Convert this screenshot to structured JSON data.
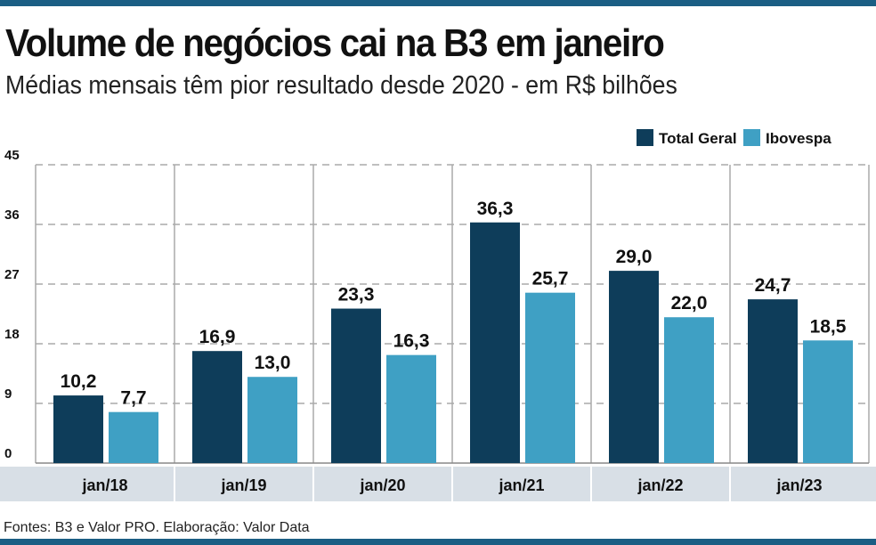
{
  "chart_data": {
    "type": "bar",
    "title": "Volume de negócios cai na B3 em janeiro",
    "subtitle": "Médias mensais têm pior resultado desde 2020 - em R$ bilhões",
    "categories": [
      "jan/18",
      "jan/19",
      "jan/20",
      "jan/21",
      "jan/22",
      "jan/23"
    ],
    "series": [
      {
        "name": "Total Geral",
        "color": "#0e3d5a",
        "values": [
          10.2,
          16.9,
          23.3,
          36.3,
          29.0,
          24.7
        ],
        "labels": [
          "10,2",
          "16,9",
          "23,3",
          "36,3",
          "29,0",
          "24,7"
        ]
      },
      {
        "name": "Ibovespa",
        "color": "#3fa0c4",
        "values": [
          7.7,
          13.0,
          16.3,
          25.7,
          22.0,
          18.5
        ],
        "labels": [
          "7,7",
          "13,0",
          "16,3",
          "25,7",
          "22,0",
          "18,5"
        ]
      }
    ],
    "yticks": [
      0,
      9,
      18,
      27,
      36,
      45
    ],
    "ylim": [
      0,
      45
    ],
    "grid": true,
    "legend": "top-right",
    "source": "Fontes: B3 e Valor PRO. Elaboração: Valor Data"
  }
}
